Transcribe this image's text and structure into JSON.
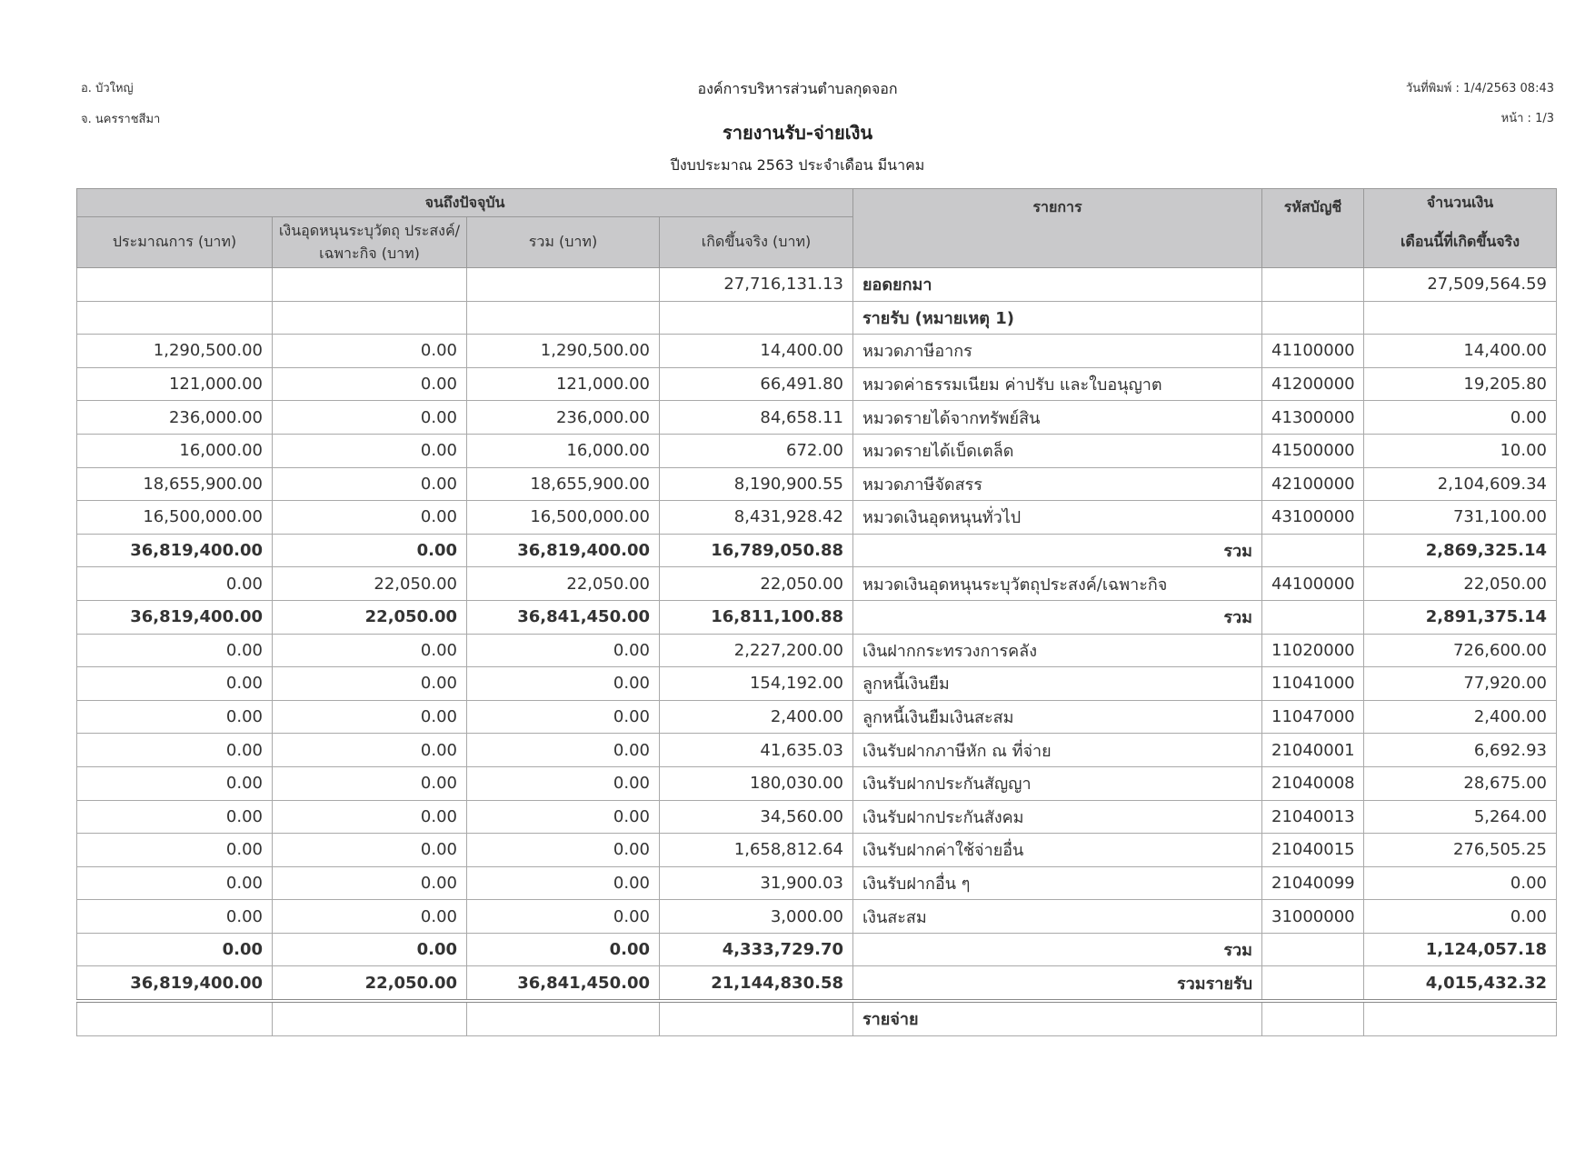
{
  "header": {
    "district": "อ. บัวใหญ่",
    "province": "จ. นครราชสีมา",
    "organization": "องค์การบริหารส่วนตำบลกุดจอก",
    "title": "รายงานรับ-จ่ายเงิน",
    "subtitle": "ปีงบประมาณ 2563 ประจำเดือน มีนาคม",
    "print_date": "วันที่พิมพ์ : 1/4/2563  08:43",
    "page": "หน้า : 1/3"
  },
  "table": {
    "group_header": "จนถึงปัจจุบัน",
    "columns": {
      "estimate": "ประมาณการ (บาท)",
      "subsidy": "เงินอุดหนุนระบุวัตถุ ประสงค์/เฉพาะกิจ (บาท)",
      "total": "รวม (บาท)",
      "actual": "เกิดขึ้นจริง (บาท)",
      "item": "รายการ",
      "code": "รหัสบัญชี",
      "amount_top": "จำนวนเงิน",
      "amount_bottom": "เดือนนี้ที่เกิดขึ้นจริง"
    },
    "rows": [
      {
        "type": "normal",
        "cells": [
          "",
          "",
          "",
          "27,716,131.13",
          "ยอดยกมา",
          "",
          "27,509,564.59"
        ],
        "bold_label": true
      },
      {
        "type": "normal",
        "cells": [
          "",
          "",
          "",
          "",
          "รายรับ (หมายเหตุ 1)",
          "",
          ""
        ],
        "bold_label": true
      },
      {
        "type": "normal",
        "cells": [
          "1,290,500.00",
          "0.00",
          "1,290,500.00",
          "14,400.00",
          "หมวดภาษีอากร",
          "41100000",
          "14,400.00"
        ]
      },
      {
        "type": "normal",
        "cells": [
          "121,000.00",
          "0.00",
          "121,000.00",
          "66,491.80",
          "หมวดค่าธรรมเนียม ค่าปรับ และใบอนุญาต",
          "41200000",
          "19,205.80"
        ]
      },
      {
        "type": "normal",
        "cells": [
          "236,000.00",
          "0.00",
          "236,000.00",
          "84,658.11",
          "หมวดรายได้จากทรัพย์สิน",
          "41300000",
          "0.00"
        ]
      },
      {
        "type": "normal",
        "cells": [
          "16,000.00",
          "0.00",
          "16,000.00",
          "672.00",
          "หมวดรายได้เบ็ดเตล็ด",
          "41500000",
          "10.00"
        ]
      },
      {
        "type": "normal",
        "cells": [
          "18,655,900.00",
          "0.00",
          "18,655,900.00",
          "8,190,900.55",
          "หมวดภาษีจัดสรร",
          "42100000",
          "2,104,609.34"
        ]
      },
      {
        "type": "normal",
        "cells": [
          "16,500,000.00",
          "0.00",
          "16,500,000.00",
          "8,431,928.42",
          "หมวดเงินอุดหนุนทั่วไป",
          "43100000",
          "731,100.00"
        ]
      },
      {
        "type": "total",
        "cells": [
          "36,819,400.00",
          "0.00",
          "36,819,400.00",
          "16,789,050.88",
          "รวม",
          "",
          "2,869,325.14"
        ]
      },
      {
        "type": "normal",
        "cells": [
          "0.00",
          "22,050.00",
          "22,050.00",
          "22,050.00",
          "หมวดเงินอุดหนุนระบุวัตถุประสงค์/เฉพาะกิจ",
          "44100000",
          "22,050.00"
        ]
      },
      {
        "type": "total",
        "cells": [
          "36,819,400.00",
          "22,050.00",
          "36,841,450.00",
          "16,811,100.88",
          "รวม",
          "",
          "2,891,375.14"
        ]
      },
      {
        "type": "normal",
        "cells": [
          "0.00",
          "0.00",
          "0.00",
          "2,227,200.00",
          "เงินฝากกระทรวงการคลัง",
          "11020000",
          "726,600.00"
        ]
      },
      {
        "type": "normal",
        "cells": [
          "0.00",
          "0.00",
          "0.00",
          "154,192.00",
          "ลูกหนี้เงินยืม",
          "11041000",
          "77,920.00"
        ]
      },
      {
        "type": "normal",
        "cells": [
          "0.00",
          "0.00",
          "0.00",
          "2,400.00",
          "ลูกหนี้เงินยืมเงินสะสม",
          "11047000",
          "2,400.00"
        ]
      },
      {
        "type": "normal",
        "cells": [
          "0.00",
          "0.00",
          "0.00",
          "41,635.03",
          "เงินรับฝากภาษีหัก ณ ที่จ่าย",
          "21040001",
          "6,692.93"
        ]
      },
      {
        "type": "normal",
        "cells": [
          "0.00",
          "0.00",
          "0.00",
          "180,030.00",
          "เงินรับฝากประกันสัญญา",
          "21040008",
          "28,675.00"
        ]
      },
      {
        "type": "normal",
        "cells": [
          "0.00",
          "0.00",
          "0.00",
          "34,560.00",
          "เงินรับฝากประกันสังคม",
          "21040013",
          "5,264.00"
        ]
      },
      {
        "type": "normal",
        "cells": [
          "0.00",
          "0.00",
          "0.00",
          "1,658,812.64",
          "เงินรับฝากค่าใช้จ่ายอื่น",
          "21040015",
          "276,505.25"
        ]
      },
      {
        "type": "normal",
        "cells": [
          "0.00",
          "0.00",
          "0.00",
          "31,900.03",
          "เงินรับฝากอื่น ๆ",
          "21040099",
          "0.00"
        ]
      },
      {
        "type": "normal",
        "cells": [
          "0.00",
          "0.00",
          "0.00",
          "3,000.00",
          "เงินสะสม",
          "31000000",
          "0.00"
        ]
      },
      {
        "type": "total",
        "cells": [
          "0.00",
          "0.00",
          "0.00",
          "4,333,729.70",
          "รวม",
          "",
          "1,124,057.18"
        ]
      },
      {
        "type": "grand",
        "cells": [
          "36,819,400.00",
          "22,050.00",
          "36,841,450.00",
          "21,144,830.58",
          "รวมรายรับ",
          "",
          "4,015,432.32"
        ]
      },
      {
        "type": "section",
        "cells": [
          "",
          "",
          "",
          "",
          "รายจ่าย",
          "",
          ""
        ],
        "bold_label": true
      }
    ]
  }
}
